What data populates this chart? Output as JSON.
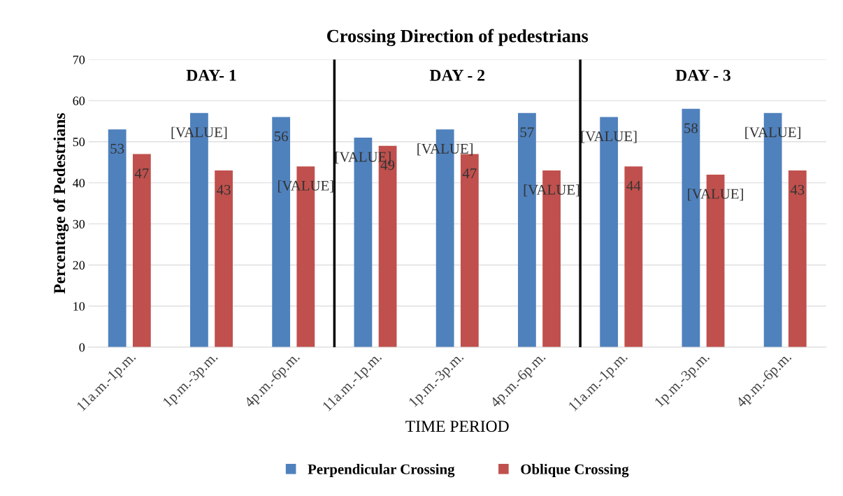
{
  "chart_data": {
    "type": "bar",
    "title": "Crossing Direction of pedestrians",
    "xlabel": "TIME PERIOD",
    "ylabel": "Percentage of Pedestrians",
    "categories": [
      "11a.m.-1p.m.",
      "1p.m.-3p.m.",
      "4p.m.-6p.m.",
      "11a.m.-1p.m.",
      "1p.m.-3p.m.",
      "4p.m.-6p.m.",
      "11a.m.-1p.m.",
      "1p.m.-3p.m.",
      "4p.m.-6p.m."
    ],
    "series": [
      {
        "name": "Perpendicular Crossing",
        "color": "#4f81bd",
        "values": [
          53,
          57,
          56,
          51,
          53,
          57,
          56,
          58,
          57
        ],
        "value_labels": [
          "53",
          "[VALUE]",
          "56",
          "[VALUE]",
          "[VALUE]",
          "57",
          "[VALUE]",
          "58",
          "[VALUE]"
        ]
      },
      {
        "name": "Oblique Crossing",
        "color": "#c0504d",
        "values": [
          47,
          43,
          44,
          49,
          47,
          43,
          44,
          42,
          43
        ],
        "value_labels": [
          "47",
          "43",
          "[VALUE]",
          "49",
          "47",
          "[VALUE]",
          "44",
          "[VALUE]",
          "43"
        ]
      }
    ],
    "annotations": [
      "DAY- 1",
      "DAY - 2",
      "DAY - 3"
    ],
    "ylim": [
      0,
      70
    ],
    "yticks": [
      0,
      10,
      20,
      30,
      40,
      50,
      60,
      70
    ],
    "grid": "y",
    "legend": "bottom"
  }
}
